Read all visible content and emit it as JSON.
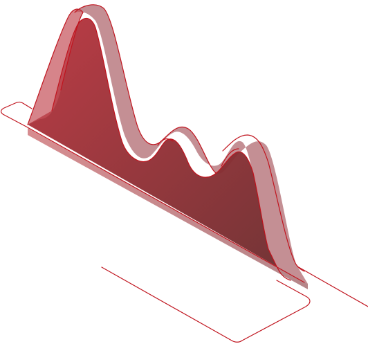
{
  "colors": {
    "background": "#ffffff",
    "outline": "#c0141e",
    "side_light": "#c76e73",
    "side_mid": "#ae5a63",
    "front_light": "#b8323c",
    "front_dark": "#6e2a2c"
  },
  "figure": {
    "description_icon": "isometric-ribbon-wave-icon"
  }
}
